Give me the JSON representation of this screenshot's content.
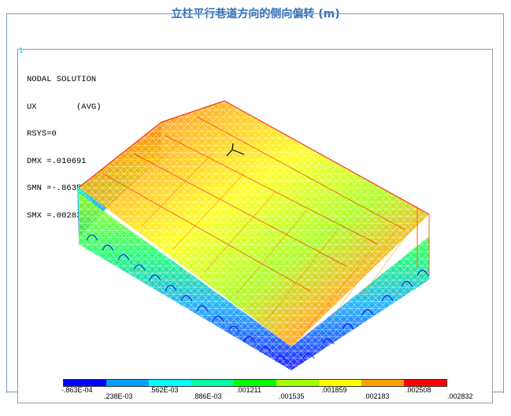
{
  "page_title": "立柱平行巷道方向的侧向偏转 (m)",
  "plot": {
    "index": "1",
    "info_lines": [
      "NODAL SOLUTION",
      "UX        (AVG)",
      "RSYS=0",
      "DMX =.010691",
      "SMN =-.863E-04",
      "SMX =.002832"
    ]
  },
  "legend": {
    "colors": [
      "#0000ff",
      "#00a0ff",
      "#00ffff",
      "#00ffa0",
      "#00ff00",
      "#a0ff00",
      "#ffff00",
      "#ffa000",
      "#ff0000"
    ],
    "labels_upper": [
      "-.863E-04",
      ".562E-03",
      ".001211",
      ".001859",
      ".002508"
    ],
    "labels_lower": [
      ".238E-03",
      ".886E-03",
      ".001535",
      ".002183",
      ".002832"
    ]
  }
}
